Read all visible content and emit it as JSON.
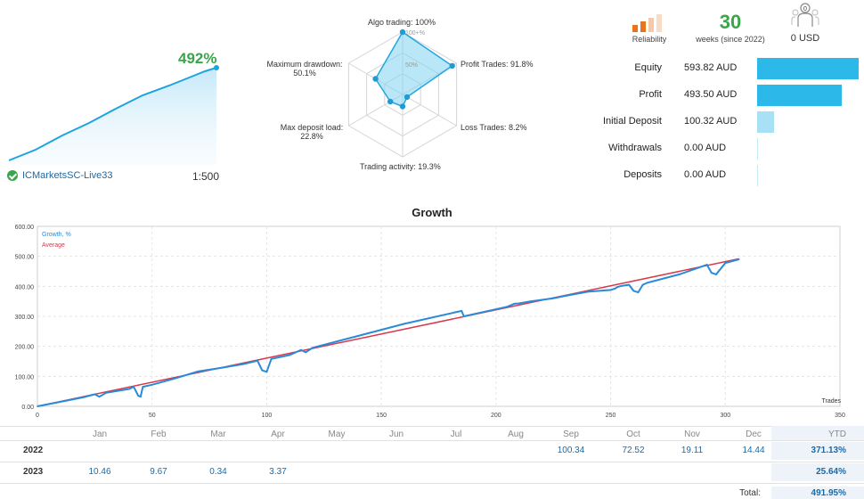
{
  "summary": {
    "growth_pct": "492%",
    "broker": "ICMarketsSC-Live33",
    "leverage": "1:500"
  },
  "radar": {
    "labels": {
      "algo": "Algo trading: 100%",
      "profit": "Profit Trades: 91.8%",
      "loss": "Loss Trades: 8.2%",
      "activity": "Trading activity: 19.3%",
      "deposit_load_1": "Max deposit load:",
      "deposit_load_2": "22.8%",
      "drawdown_1": "Maximum drawdown:",
      "drawdown_2": "50.1%",
      "ring100": "100+%",
      "ring50": "50%"
    },
    "values": {
      "algo": 100,
      "profit": 91.8,
      "loss": 8.2,
      "activity": 19.3,
      "deposit_load": 22.8,
      "drawdown": 50.1
    }
  },
  "stats_top": {
    "reliability_label": "Reliability",
    "weeks": "30",
    "weeks_label": "weeks (since 2022)",
    "subscribers_count": "0",
    "subscription_price": "0 USD"
  },
  "account": [
    {
      "label": "Equity",
      "value": "593.82 AUD",
      "amount": 593.82
    },
    {
      "label": "Profit",
      "value": "493.50 AUD",
      "amount": 493.5
    },
    {
      "label": "Initial Deposit",
      "value": "100.32 AUD",
      "amount": 100.32
    },
    {
      "label": "Withdrawals",
      "value": "0.00 AUD",
      "amount": 0
    },
    {
      "label": "Deposits",
      "value": "0.00 AUD",
      "amount": 0
    }
  ],
  "growth": {
    "title": "Growth",
    "legend_growth": "Growth, %",
    "legend_average": "Average",
    "x_axis_label": "Trades",
    "colors": {
      "growth": "#2a8ad8",
      "average": "#d9394b"
    }
  },
  "chart_data": {
    "type": "line",
    "title": "Growth",
    "xlabel": "Trades",
    "ylabel": "",
    "xlim": [
      0,
      350
    ],
    "ylim": [
      0,
      600
    ],
    "x_ticks": [
      "0",
      "50",
      "100",
      "150",
      "200",
      "250",
      "300",
      "350"
    ],
    "y_ticks": [
      "0.00",
      "100.00",
      "200.00",
      "300.00",
      "400.00",
      "500.00",
      "600.00"
    ],
    "series": [
      {
        "name": "Growth, %",
        "x": [
          0,
          20,
          25,
          27,
          30,
          40,
          42,
          44,
          45,
          46,
          50,
          60,
          70,
          80,
          90,
          96,
          98,
          100,
          102,
          110,
          115,
          117,
          120,
          140,
          160,
          185,
          186,
          205,
          208,
          210,
          215,
          225,
          230,
          240,
          250,
          252,
          253,
          255,
          258,
          260,
          262,
          264,
          266,
          270,
          280,
          292,
          294,
          296,
          300,
          306
        ],
        "y": [
          0,
          30,
          40,
          32,
          45,
          58,
          65,
          35,
          32,
          65,
          72,
          93,
          116,
          128,
          141,
          152,
          120,
          115,
          158,
          171,
          188,
          180,
          195,
          235,
          275,
          318,
          300,
          332,
          342,
          343,
          350,
          360,
          368,
          382,
          388,
          393,
          398,
          402,
          405,
          385,
          380,
          405,
          412,
          420,
          440,
          472,
          445,
          440,
          478,
          490
        ]
      },
      {
        "name": "Average",
        "x": [
          0,
          306
        ],
        "y": [
          0,
          492
        ]
      }
    ]
  },
  "table": {
    "months": [
      "Jan",
      "Feb",
      "Mar",
      "Apr",
      "May",
      "Jun",
      "Jul",
      "Aug",
      "Sep",
      "Oct",
      "Nov",
      "Dec"
    ],
    "ytd_header": "YTD",
    "rows": [
      {
        "year": "2022",
        "values": [
          "",
          "",
          "",
          "",
          "",
          "",
          "",
          "",
          "100.34",
          "72.52",
          "19.11",
          "14.44"
        ],
        "ytd": "371.13%"
      },
      {
        "year": "2023",
        "values": [
          "10.46",
          "9.67",
          "0.34",
          "3.37",
          "",
          "",
          "",
          "",
          "",
          "",
          "",
          ""
        ],
        "ytd": "25.64%"
      }
    ],
    "total_label": "Total:",
    "total_value": "491.95%"
  }
}
